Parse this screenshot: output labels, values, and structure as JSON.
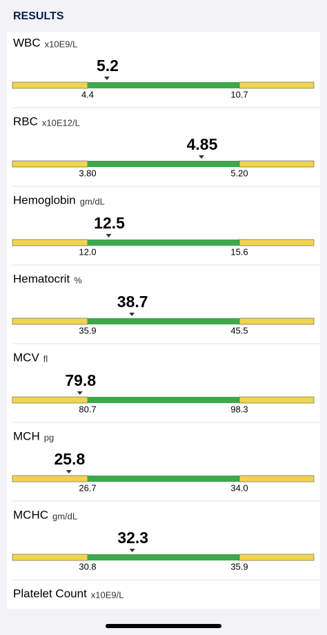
{
  "header": {
    "title": "RESULTS"
  },
  "results": [
    {
      "name": "WBC",
      "unit": "x10E9/L",
      "value": "5.2",
      "low": "4.4",
      "high": "10.7"
    },
    {
      "name": "RBC",
      "unit": "x10E12/L",
      "value": "4.85",
      "low": "3.80",
      "high": "5.20"
    },
    {
      "name": "Hemoglobin",
      "unit": "gm/dL",
      "value": "12.5",
      "low": "12.0",
      "high": "15.6"
    },
    {
      "name": "Hematocrit",
      "unit": "%",
      "value": "38.7",
      "low": "35.9",
      "high": "45.5"
    },
    {
      "name": "MCV",
      "unit": "fl",
      "value": "79.8",
      "low": "80.7",
      "high": "98.3"
    },
    {
      "name": "MCH",
      "unit": "pg",
      "value": "25.8",
      "low": "26.7",
      "high": "34.0"
    },
    {
      "name": "MCHC",
      "unit": "gm/dL",
      "value": "32.3",
      "low": "30.8",
      "high": "35.9"
    },
    {
      "name": "Platelet Count",
      "unit": "x10E9/L"
    }
  ]
}
